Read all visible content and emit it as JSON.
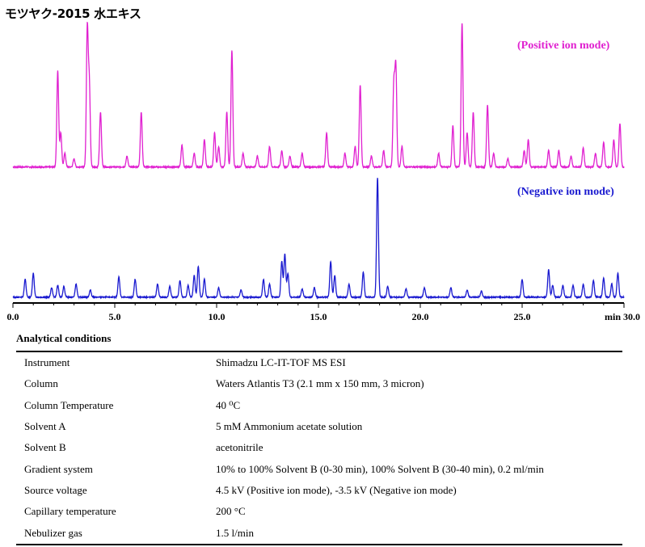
{
  "title": "モツヤク-2015 水エキス",
  "colors": {
    "positive": "#e020d0",
    "negative": "#1a1ad0",
    "axis": "#000000"
  },
  "chart_data": {
    "type": "line",
    "x_unit": "min",
    "xlim": [
      0,
      30
    ],
    "x_ticks": [
      "0.0",
      "5.0",
      "10.0",
      "15.0",
      "20.0",
      "25.0",
      "min 30.0"
    ],
    "series": [
      {
        "name": "(Positive ion mode)",
        "color": "#e020d0",
        "baseline": 1,
        "peaks": [
          [
            2.2,
            70
          ],
          [
            2.35,
            25
          ],
          [
            2.55,
            10
          ],
          [
            3.0,
            6
          ],
          [
            3.65,
            100
          ],
          [
            3.75,
            60
          ],
          [
            4.3,
            40
          ],
          [
            5.6,
            8
          ],
          [
            6.3,
            40
          ],
          [
            8.3,
            16
          ],
          [
            8.9,
            10
          ],
          [
            9.4,
            20
          ],
          [
            9.9,
            25
          ],
          [
            10.1,
            15
          ],
          [
            10.5,
            40
          ],
          [
            10.75,
            85
          ],
          [
            11.3,
            10
          ],
          [
            12.0,
            8
          ],
          [
            12.6,
            15
          ],
          [
            13.2,
            12
          ],
          [
            13.6,
            8
          ],
          [
            14.2,
            10
          ],
          [
            15.4,
            25
          ],
          [
            16.3,
            10
          ],
          [
            16.8,
            15
          ],
          [
            17.05,
            60
          ],
          [
            17.6,
            8
          ],
          [
            18.2,
            12
          ],
          [
            18.7,
            60
          ],
          [
            18.8,
            72
          ],
          [
            19.1,
            15
          ],
          [
            20.9,
            10
          ],
          [
            21.6,
            30
          ],
          [
            22.05,
            105
          ],
          [
            22.3,
            25
          ],
          [
            22.6,
            40
          ],
          [
            23.3,
            45
          ],
          [
            23.6,
            10
          ],
          [
            24.3,
            6
          ],
          [
            25.1,
            12
          ],
          [
            25.3,
            20
          ],
          [
            26.3,
            12
          ],
          [
            26.8,
            12
          ],
          [
            27.4,
            8
          ],
          [
            28.0,
            14
          ],
          [
            28.6,
            10
          ],
          [
            29.0,
            18
          ],
          [
            29.5,
            20
          ],
          [
            29.8,
            32
          ]
        ]
      },
      {
        "name": "(Negative ion mode)",
        "color": "#1a1ad0",
        "baseline": 1,
        "peaks": [
          [
            0.6,
            15
          ],
          [
            1.0,
            20
          ],
          [
            1.9,
            8
          ],
          [
            2.2,
            10
          ],
          [
            2.5,
            9
          ],
          [
            3.1,
            11
          ],
          [
            3.8,
            6
          ],
          [
            5.2,
            17
          ],
          [
            6.0,
            15
          ],
          [
            7.1,
            11
          ],
          [
            7.7,
            9
          ],
          [
            8.2,
            14
          ],
          [
            8.6,
            10
          ],
          [
            8.9,
            18
          ],
          [
            9.1,
            26
          ],
          [
            9.4,
            15
          ],
          [
            10.1,
            8
          ],
          [
            11.2,
            6
          ],
          [
            12.3,
            15
          ],
          [
            12.6,
            11
          ],
          [
            13.2,
            30
          ],
          [
            13.35,
            36
          ],
          [
            13.5,
            20
          ],
          [
            14.2,
            7
          ],
          [
            14.8,
            8
          ],
          [
            15.6,
            30
          ],
          [
            15.8,
            18
          ],
          [
            16.5,
            11
          ],
          [
            17.2,
            21
          ],
          [
            17.9,
            100
          ],
          [
            18.4,
            9
          ],
          [
            19.3,
            7
          ],
          [
            20.2,
            8
          ],
          [
            21.5,
            8
          ],
          [
            22.3,
            6
          ],
          [
            23.0,
            5
          ],
          [
            25.0,
            15
          ],
          [
            26.3,
            23
          ],
          [
            26.5,
            10
          ],
          [
            27.0,
            10
          ],
          [
            27.5,
            10
          ],
          [
            28.0,
            11
          ],
          [
            28.5,
            14
          ],
          [
            29.0,
            16
          ],
          [
            29.4,
            11
          ],
          [
            29.7,
            20
          ]
        ]
      }
    ]
  },
  "conditions": {
    "heading": "Analytical conditions",
    "rows": [
      {
        "label": "Instrument",
        "value": "Shimadzu LC-IT-TOF MS ESI"
      },
      {
        "label": "Column",
        "value": "Waters Atlantis T3 (2.1 mm x 150 mm, 3 micron)"
      },
      {
        "label": "Column Temperature",
        "value": "40 ⁰C"
      },
      {
        "label": "Solvent A",
        "value": "5 mM Ammonium acetate solution"
      },
      {
        "label": "Solvent B",
        "value": "acetonitrile"
      },
      {
        "label": "Gradient system",
        "value": "10% to 100% Solvent B (0-30 min), 100% Solvent B (30-40 min), 0.2 ml/min"
      },
      {
        "label": "Source voltage",
        "value": "4.5 kV (Positive ion mode), -3.5 kV (Negative ion mode)"
      },
      {
        "label": "Capillary temperature",
        "value": "200 °C"
      },
      {
        "label": "Nebulizer gas",
        "value": "1.5 l/min"
      }
    ]
  }
}
